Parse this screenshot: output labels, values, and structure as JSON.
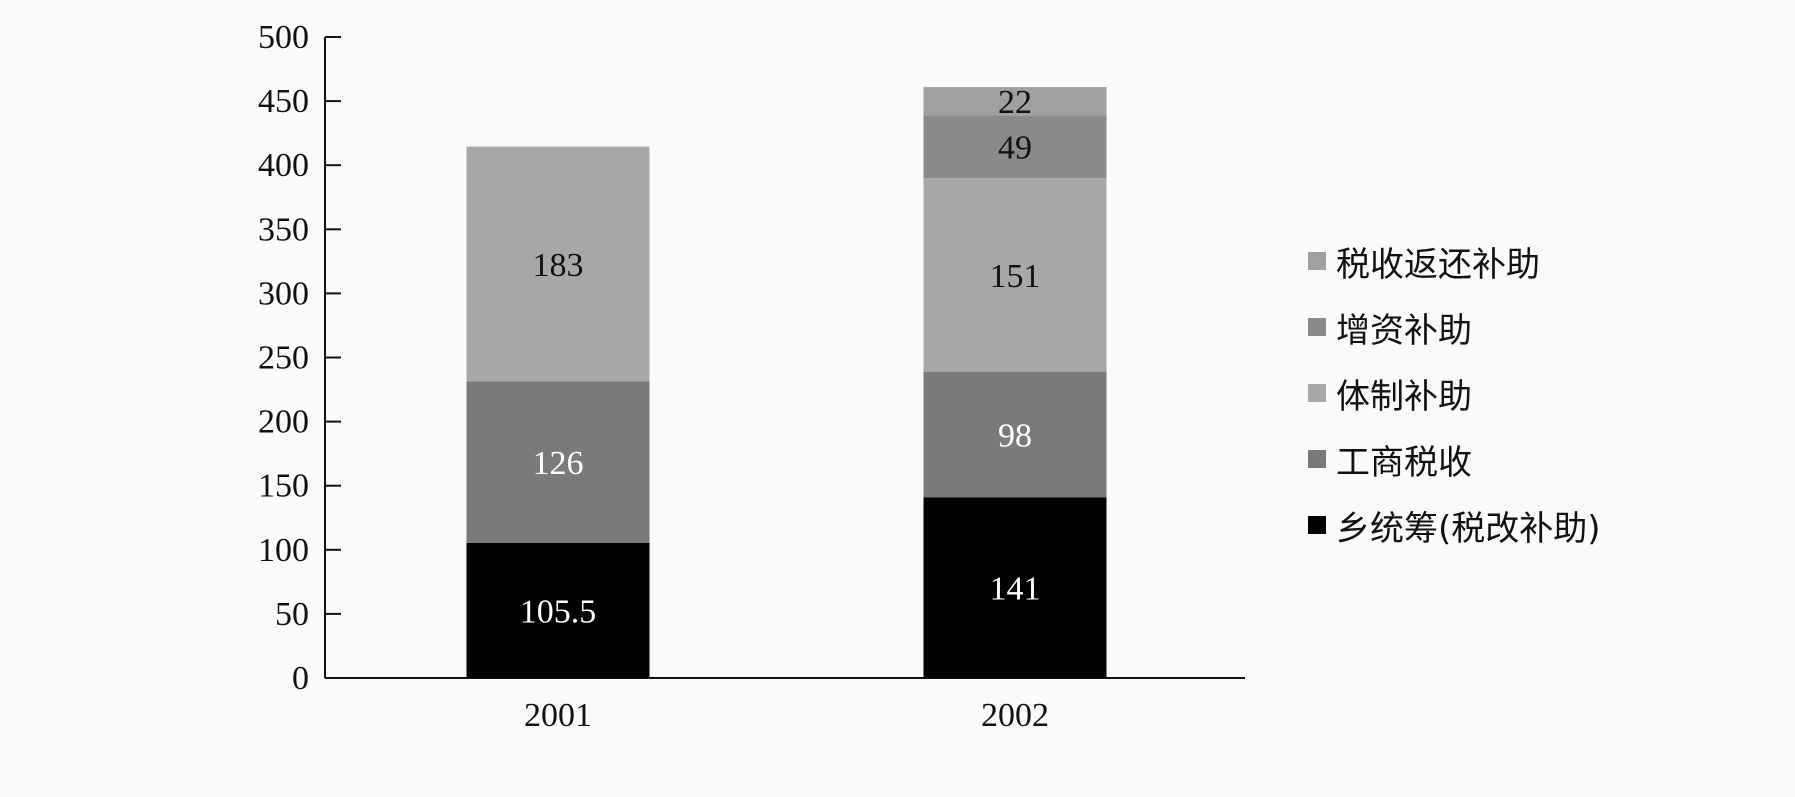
{
  "chart_data": {
    "type": "bar",
    "stacked": true,
    "categories": [
      "2001",
      "2002"
    ],
    "ylim": [
      0,
      500
    ],
    "yticks": [
      0,
      50,
      100,
      150,
      200,
      250,
      300,
      350,
      400,
      450,
      500
    ],
    "grid": false,
    "legend_position": "right",
    "xlabel": "",
    "ylabel": "",
    "title": "",
    "series": [
      {
        "name": "乡统筹(税改补助)",
        "values": [
          105.5,
          141
        ],
        "labels": [
          "105.5",
          "141"
        ],
        "color": "#000000",
        "label_color": "#ffffff"
      },
      {
        "name": "工商税收",
        "values": [
          126,
          98
        ],
        "labels": [
          "126",
          "98"
        ],
        "color": "#7a7a7a",
        "label_color": "#ffffff"
      },
      {
        "name": "体制补助",
        "values": [
          183,
          151
        ],
        "labels": [
          "183",
          "151"
        ],
        "color": "#a8a8a8",
        "label_color": "#111111"
      },
      {
        "name": "增资补助",
        "values": [
          0,
          49
        ],
        "labels": [
          "",
          "49"
        ],
        "color": "#8a8a8a",
        "label_color": "#111111"
      },
      {
        "name": "税收返还补助",
        "values": [
          0,
          22
        ],
        "labels": [
          "",
          "22"
        ],
        "color": "#a0a0a0",
        "label_color": "#111111"
      }
    ]
  }
}
